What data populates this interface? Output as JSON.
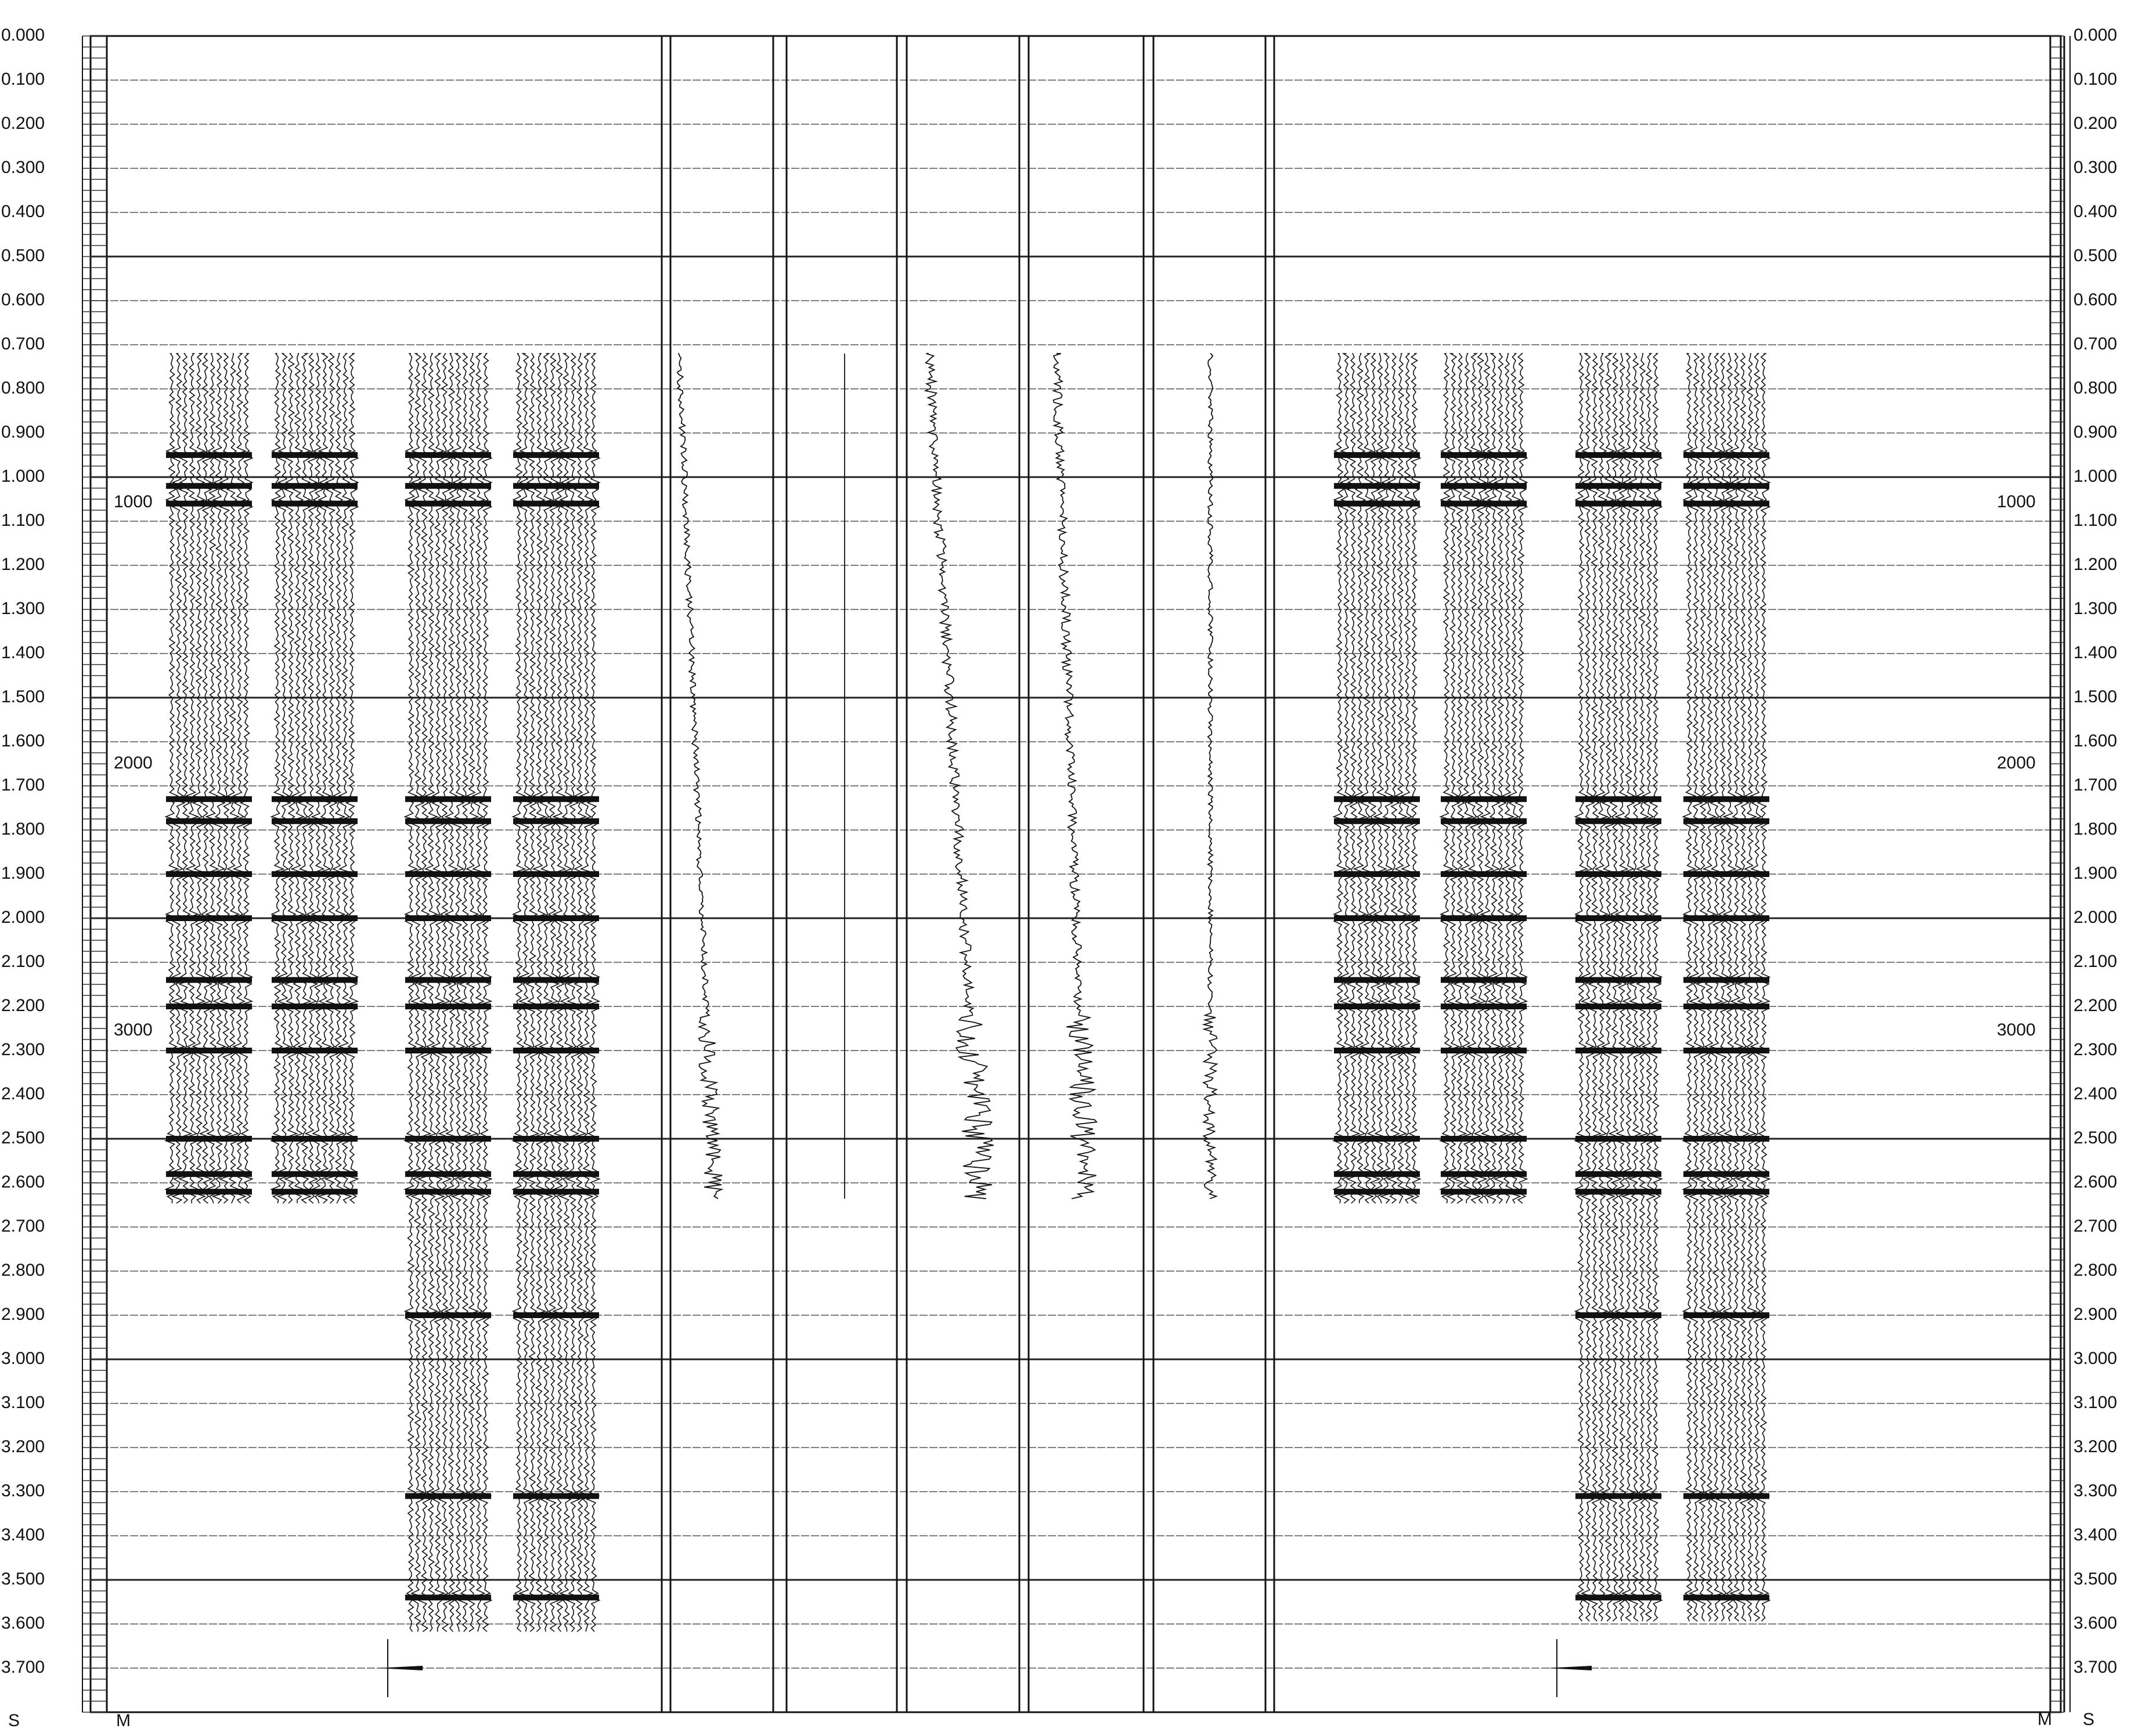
{
  "time_axis": {
    "labels": [
      "0.000",
      "0.100",
      "0.200",
      "0.300",
      "0.400",
      "0.500",
      "0.600",
      "0.700",
      "0.800",
      "0.900",
      "1.000",
      "1.100",
      "1.200",
      "1.300",
      "1.400",
      "1.500",
      "1.600",
      "1.700",
      "1.800",
      "1.900",
      "2.000",
      "2.100",
      "2.200",
      "2.300",
      "2.400",
      "2.500",
      "2.600",
      "2.700",
      "2.800",
      "2.900",
      "3.000",
      "3.100",
      "3.200",
      "3.300",
      "3.400",
      "3.500",
      "3.600",
      "3.700"
    ],
    "unit_label": "S"
  },
  "depth_axis": {
    "labels": [
      "1000",
      "2000",
      "3000"
    ],
    "unit_label": "M"
  },
  "tracks": {
    "count": 10,
    "seismic_panels": [
      {
        "side": "left",
        "start_s": 0.72,
        "end_s": 2.65
      },
      {
        "side": "left",
        "start_s": 0.72,
        "end_s": 2.65
      },
      {
        "side": "left",
        "start_s": 0.72,
        "end_s": 3.62
      },
      {
        "side": "left",
        "start_s": 0.72,
        "end_s": 3.62
      },
      {
        "side": "right",
        "start_s": 0.72,
        "end_s": 2.65
      },
      {
        "side": "right",
        "start_s": 0.72,
        "end_s": 2.65
      },
      {
        "side": "right",
        "start_s": 0.72,
        "end_s": 3.6
      },
      {
        "side": "right",
        "start_s": 0.72,
        "end_s": 3.6
      }
    ],
    "strong_events_s": [
      0.95,
      1.02,
      1.06,
      1.73,
      1.78,
      1.9,
      2.0,
      2.14,
      2.2,
      2.3,
      2.5,
      2.58,
      2.62,
      2.9,
      3.31,
      3.54
    ],
    "log_curves_start_s": 0.72,
    "log_curves_end_s": 2.64
  },
  "wavelets": [
    {
      "panel": "left",
      "time_s": 3.7
    },
    {
      "panel": "right",
      "time_s": 3.7
    }
  ]
}
